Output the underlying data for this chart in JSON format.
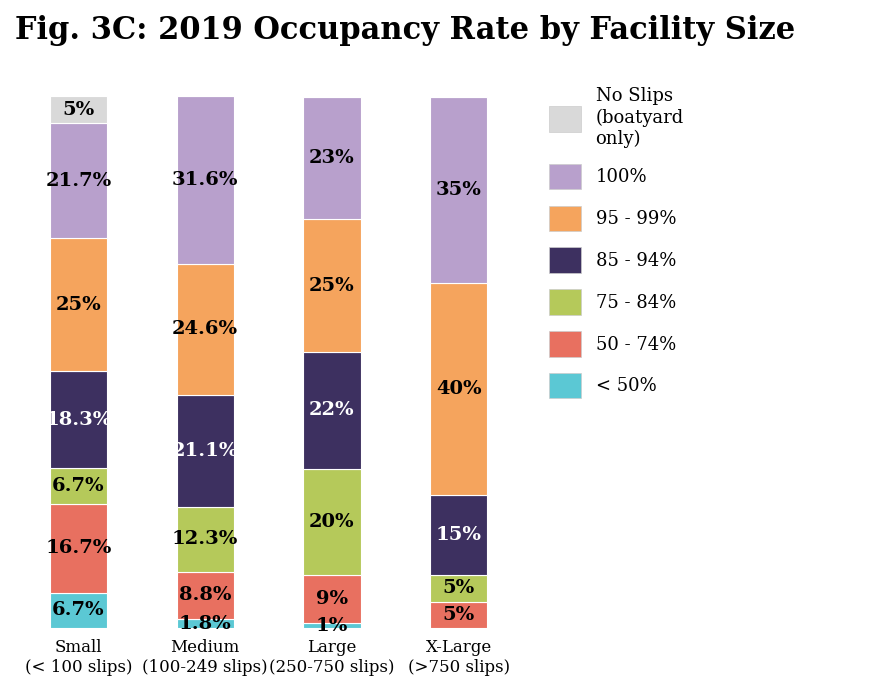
{
  "title": "Fig. 3C: 2019 Occupancy Rate by Facility Size",
  "categories": [
    "Small\n(< 100 slips)",
    "Medium\n(100-249 slips)",
    "Large\n(250-750 slips)",
    "X-Large\n(>750 slips)"
  ],
  "legend_labels": [
    "No Slips\n(boatyard\nonly)",
    "100%",
    "95 - 99%",
    "85 - 94%",
    "75 - 84%",
    "50 - 74%",
    "< 50%"
  ],
  "colors": [
    "#d9d9d9",
    "#b8a0cc",
    "#f5a45d",
    "#3d3060",
    "#b5c95a",
    "#e87060",
    "#5bc8d4"
  ],
  "data": {
    "no_slips": [
      5.0,
      0.0,
      0.0,
      0.0
    ],
    "pct_100": [
      21.7,
      31.6,
      23.0,
      35.0
    ],
    "pct_95_99": [
      25.0,
      24.6,
      25.0,
      40.0
    ],
    "pct_85_94": [
      18.3,
      21.1,
      22.0,
      15.0
    ],
    "pct_75_84": [
      6.7,
      12.3,
      20.0,
      5.0
    ],
    "pct_50_74": [
      16.7,
      8.8,
      9.0,
      5.0
    ],
    "pct_lt50": [
      6.7,
      1.8,
      1.0,
      0.0
    ]
  },
  "bar_width": 0.45,
  "title_fontsize": 22,
  "label_fontsize": 14,
  "tick_fontsize": 12,
  "legend_fontsize": 13,
  "bg_color": "#ffffff",
  "ylim": 107
}
